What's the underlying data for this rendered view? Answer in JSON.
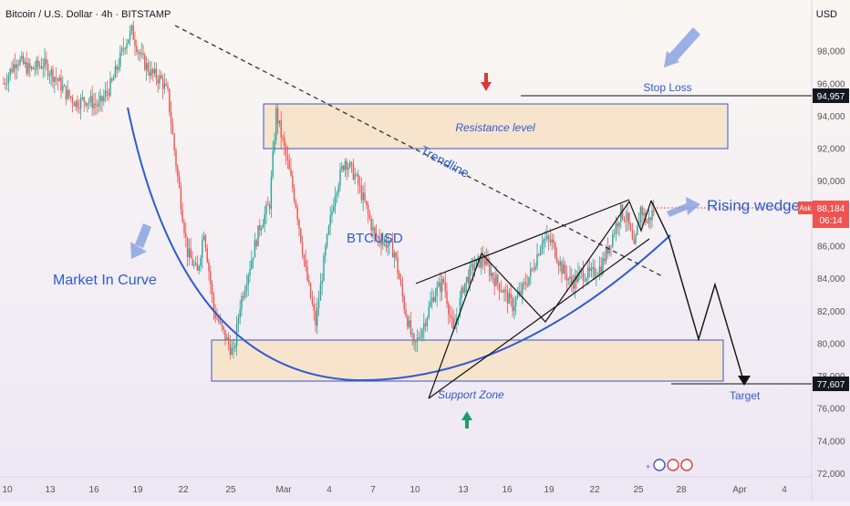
{
  "header": {
    "symbol_line": "Bitcoin / U.S. Dollar · 4h · BITSTAMP",
    "currency": "USD"
  },
  "colors": {
    "up": "#26a69a",
    "down": "#ef5350",
    "annotation_blue": "#2e5bd1",
    "zone_fill": "#f6e4cd",
    "zone_border": "#3a56c8",
    "arrow_red": "#d93a3a",
    "arrow_green": "#1e9c6a",
    "price_red": "#ef5350"
  },
  "annotations": {
    "stop_loss": "Stop Loss",
    "resistance": "Resistance level",
    "trendline": "Trendline",
    "rising_wedge": "Rising wedge",
    "market_curve": "Market In Curve",
    "ticker": "BTCUSD",
    "support": "Support Zone",
    "target": "Target"
  },
  "price_labels": {
    "stop": "94,957",
    "current": "88,184",
    "countdown": "06:14",
    "ask": "Ask",
    "target": "77,607"
  },
  "chart_data": {
    "type": "candlestick",
    "title": "Bitcoin / U.S. Dollar · 4h · BITSTAMP",
    "ylim": [
      72000,
      100000
    ],
    "y_ticks": [
      "98,000",
      "96,000",
      "94,000",
      "92,000",
      "90,000",
      "88,000",
      "86,000",
      "84,000",
      "82,000",
      "80,000",
      "78,000",
      "76,000",
      "74,000",
      "72,000"
    ],
    "y_tick_values": [
      98000,
      96000,
      94000,
      92000,
      90000,
      88000,
      86000,
      84000,
      82000,
      80000,
      78000,
      76000,
      74000,
      72000
    ],
    "x_ticks": [
      "10",
      "13",
      "16",
      "19",
      "22",
      "25",
      "Mar",
      "4",
      "7",
      "10",
      "13",
      "16",
      "19",
      "22",
      "25",
      "28",
      "Apr",
      "4"
    ],
    "price_path": [
      [
        0,
        96000
      ],
      [
        8,
        97500
      ],
      [
        16,
        96800
      ],
      [
        24,
        97200
      ],
      [
        32,
        96300
      ],
      [
        38,
        95400
      ],
      [
        44,
        94800
      ],
      [
        50,
        95000
      ],
      [
        58,
        94600
      ],
      [
        66,
        96000
      ],
      [
        74,
        98500
      ],
      [
        78,
        99200
      ],
      [
        84,
        97500
      ],
      [
        90,
        96600
      ],
      [
        96,
        96200
      ],
      [
        100,
        95300
      ],
      [
        106,
        90200
      ],
      [
        112,
        85600
      ],
      [
        118,
        84300
      ],
      [
        122,
        87000
      ],
      [
        128,
        82000
      ],
      [
        134,
        80600
      ],
      [
        140,
        79300
      ],
      [
        144,
        82400
      ],
      [
        150,
        84800
      ],
      [
        156,
        87200
      ],
      [
        162,
        88600
      ],
      [
        166,
        94200
      ],
      [
        172,
        91500
      ],
      [
        178,
        88600
      ],
      [
        184,
        84400
      ],
      [
        190,
        81200
      ],
      [
        196,
        85700
      ],
      [
        202,
        89400
      ],
      [
        208,
        91300
      ],
      [
        214,
        90300
      ],
      [
        220,
        88600
      ],
      [
        226,
        86600
      ],
      [
        232,
        86300
      ],
      [
        238,
        85600
      ],
      [
        244,
        82300
      ],
      [
        250,
        79700
      ],
      [
        256,
        81200
      ],
      [
        262,
        83000
      ],
      [
        268,
        83800
      ],
      [
        274,
        80600
      ],
      [
        280,
        83500
      ],
      [
        286,
        84700
      ],
      [
        292,
        85200
      ],
      [
        298,
        84100
      ],
      [
        304,
        83300
      ],
      [
        310,
        82300
      ],
      [
        316,
        83300
      ],
      [
        322,
        84500
      ],
      [
        328,
        86400
      ],
      [
        334,
        86200
      ],
      [
        340,
        84600
      ],
      [
        346,
        83700
      ],
      [
        352,
        84300
      ],
      [
        358,
        84200
      ],
      [
        364,
        84700
      ],
      [
        370,
        86400
      ],
      [
        376,
        88100
      ],
      [
        380,
        87600
      ],
      [
        384,
        85700
      ],
      [
        388,
        88300
      ],
      [
        392,
        87400
      ],
      [
        396,
        88200
      ]
    ],
    "zones": [
      {
        "name": "Resistance level",
        "from": 92000,
        "to": 94500
      },
      {
        "name": "Support Zone",
        "from": 77600,
        "to": 80300
      }
    ],
    "levels": {
      "stop_loss": 94957,
      "target": 77607,
      "current": 88184
    }
  }
}
